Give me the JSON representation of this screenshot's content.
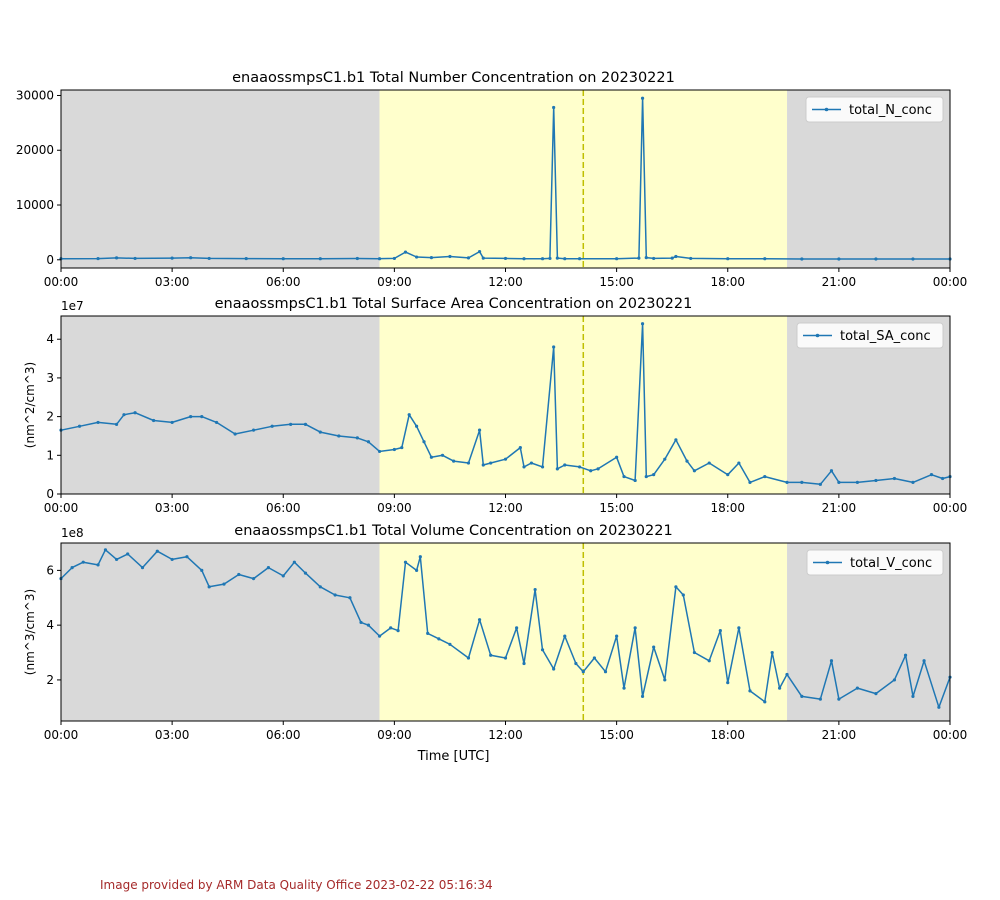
{
  "footer": {
    "text": "Image provided by ARM Data Quality Office 2023-02-22 05:16:34",
    "color": "#a52a2a"
  },
  "colors": {
    "line": "#1f77b4",
    "night": "#d9d9d9",
    "day": "#ffffcc",
    "marker": "#bfbf00"
  },
  "shared_axis": {
    "xlabel": "Time [UTC]",
    "x_ticks": [
      "00:00",
      "03:00",
      "06:00",
      "09:00",
      "12:00",
      "15:00",
      "18:00",
      "21:00",
      "00:00"
    ],
    "xlim_hours": [
      0,
      24
    ],
    "day_span_hours": [
      8.6,
      19.6
    ],
    "dashed_line_hours": 14.1
  },
  "chart_data": [
    {
      "type": "line",
      "title": "enaaossmpsC1.b1 Total Number Concentration on 20230221",
      "ylabel": "",
      "offset_label": "",
      "legend": "total_N_conc",
      "legend_position": "top-right",
      "ylim": [
        -1500,
        31000
      ],
      "y_ticks": [
        0,
        10000,
        20000,
        30000
      ],
      "y_tick_labels": [
        "0",
        "10000",
        "20000",
        "30000"
      ],
      "x_hours": [
        0,
        1,
        1.5,
        2,
        3,
        3.5,
        4,
        5,
        6,
        7,
        8,
        8.6,
        9.0,
        9.3,
        9.6,
        10,
        10.5,
        11,
        11.3,
        11.4,
        12,
        12.5,
        13,
        13.2,
        13.3,
        13.4,
        13.6,
        14,
        15,
        15.6,
        15.7,
        15.8,
        16,
        16.5,
        16.6,
        17,
        18,
        19,
        20,
        21,
        22,
        23,
        24
      ],
      "values": [
        200,
        220,
        350,
        250,
        300,
        380,
        250,
        220,
        200,
        200,
        230,
        200,
        250,
        1400,
        500,
        400,
        600,
        350,
        1500,
        300,
        250,
        200,
        200,
        250,
        27800,
        300,
        200,
        200,
        200,
        300,
        29500,
        400,
        250,
        300,
        600,
        250,
        200,
        200,
        150,
        150,
        150,
        150,
        150
      ]
    },
    {
      "type": "line",
      "title": "enaaossmpsC1.b1 Total Surface Area Concentration on 20230221",
      "ylabel": "(nm^2/cm^3)",
      "offset_label": "1e7",
      "legend": "total_SA_conc",
      "legend_position": "top-right",
      "ylim": [
        0,
        4.6
      ],
      "y_ticks": [
        0,
        1,
        2,
        3,
        4
      ],
      "y_tick_labels": [
        "0",
        "1",
        "2",
        "3",
        "4"
      ],
      "x_hours": [
        0,
        0.5,
        1.0,
        1.5,
        1.7,
        2.0,
        2.5,
        3.0,
        3.5,
        3.8,
        4.2,
        4.7,
        5.2,
        5.7,
        6.2,
        6.6,
        7.0,
        7.5,
        8.0,
        8.3,
        8.6,
        9.0,
        9.2,
        9.4,
        9.6,
        9.8,
        10.0,
        10.3,
        10.6,
        11.0,
        11.3,
        11.4,
        11.6,
        12.0,
        12.4,
        12.5,
        12.7,
        13.0,
        13.3,
        13.4,
        13.6,
        14.0,
        14.3,
        14.5,
        15.0,
        15.2,
        15.5,
        15.7,
        15.8,
        16.0,
        16.3,
        16.6,
        16.9,
        17.1,
        17.5,
        18.0,
        18.3,
        18.6,
        19.0,
        19.6,
        20.0,
        20.5,
        20.8,
        21.0,
        21.5,
        22.0,
        22.5,
        23.0,
        23.5,
        23.8,
        24.0
      ],
      "values": [
        1.65,
        1.75,
        1.85,
        1.8,
        2.05,
        2.1,
        1.9,
        1.85,
        2.0,
        2.0,
        1.85,
        1.55,
        1.65,
        1.75,
        1.8,
        1.8,
        1.6,
        1.5,
        1.45,
        1.35,
        1.1,
        1.15,
        1.2,
        2.05,
        1.75,
        1.35,
        0.95,
        1.0,
        0.85,
        0.8,
        1.65,
        0.75,
        0.8,
        0.9,
        1.2,
        0.7,
        0.8,
        0.7,
        3.8,
        0.65,
        0.75,
        0.7,
        0.6,
        0.65,
        0.95,
        0.45,
        0.35,
        4.4,
        0.45,
        0.5,
        0.9,
        1.4,
        0.85,
        0.6,
        0.8,
        0.5,
        0.8,
        0.3,
        0.45,
        0.3,
        0.3,
        0.25,
        0.6,
        0.3,
        0.3,
        0.35,
        0.4,
        0.3,
        0.5,
        0.4,
        0.45
      ]
    },
    {
      "type": "line",
      "title": "enaaossmpsC1.b1 Total Volume Concentration on 20230221",
      "ylabel": "(nm^3/cm^3)",
      "offset_label": "1e8",
      "legend": "total_V_conc",
      "legend_position": "top-right",
      "ylim": [
        0.5,
        7.0
      ],
      "y_ticks": [
        2,
        4,
        6
      ],
      "y_tick_labels": [
        "2",
        "4",
        "6"
      ],
      "x_hours": [
        0,
        0.3,
        0.6,
        1.0,
        1.2,
        1.5,
        1.8,
        2.2,
        2.6,
        3.0,
        3.4,
        3.8,
        4.0,
        4.4,
        4.8,
        5.2,
        5.6,
        6.0,
        6.3,
        6.6,
        7.0,
        7.4,
        7.8,
        8.1,
        8.3,
        8.6,
        8.9,
        9.1,
        9.3,
        9.6,
        9.7,
        9.9,
        10.2,
        10.5,
        11.0,
        11.3,
        11.6,
        12.0,
        12.3,
        12.5,
        12.8,
        13.0,
        13.3,
        13.6,
        13.9,
        14.1,
        14.4,
        14.7,
        15.0,
        15.2,
        15.5,
        15.7,
        16.0,
        16.3,
        16.6,
        16.8,
        17.1,
        17.5,
        17.8,
        18.0,
        18.3,
        18.6,
        19.0,
        19.2,
        19.4,
        19.6,
        20.0,
        20.5,
        20.8,
        21.0,
        21.5,
        22.0,
        22.5,
        22.8,
        23.0,
        23.3,
        23.7,
        24.0
      ],
      "values": [
        5.7,
        6.1,
        6.3,
        6.2,
        6.75,
        6.4,
        6.6,
        6.1,
        6.7,
        6.4,
        6.5,
        6.0,
        5.4,
        5.5,
        5.85,
        5.7,
        6.1,
        5.8,
        6.3,
        5.9,
        5.4,
        5.1,
        5.0,
        4.1,
        4.0,
        3.6,
        3.9,
        3.8,
        6.3,
        6.0,
        6.5,
        3.7,
        3.5,
        3.3,
        2.8,
        4.2,
        2.9,
        2.8,
        3.9,
        2.6,
        5.3,
        3.1,
        2.4,
        3.6,
        2.6,
        2.3,
        2.8,
        2.3,
        3.6,
        1.7,
        3.9,
        1.4,
        3.2,
        2.0,
        5.4,
        5.1,
        3.0,
        2.7,
        3.8,
        1.9,
        3.9,
        1.6,
        1.2,
        3.0,
        1.7,
        2.2,
        1.4,
        1.3,
        2.7,
        1.3,
        1.7,
        1.5,
        2.0,
        2.9,
        1.4,
        2.7,
        1.0,
        2.1
      ]
    }
  ]
}
